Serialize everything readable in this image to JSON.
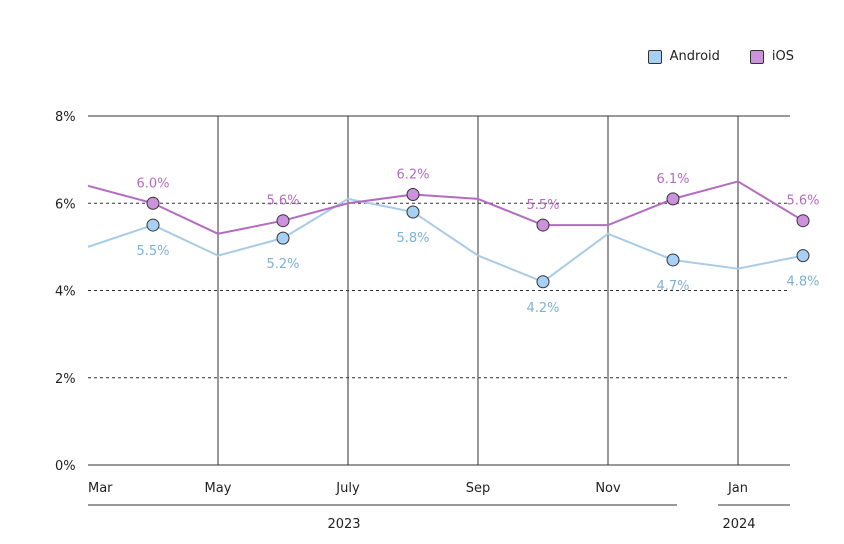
{
  "chart_data": {
    "type": "line",
    "x": [
      "2023-03",
      "2023-04",
      "2023-05",
      "2023-06",
      "2023-07",
      "2023-08",
      "2023-09",
      "2023-10",
      "2023-11",
      "2023-12",
      "2024-01",
      "2024-02"
    ],
    "x_tick_labels": [
      "Mar",
      "May",
      "July",
      "Sep",
      "Nov",
      "Jan"
    ],
    "year_labels": [
      "2023",
      "2024"
    ],
    "series": [
      {
        "name": "Android",
        "color": "#a9cbe6",
        "marker_color": "#a8d0f5",
        "values": [
          5.0,
          5.5,
          4.8,
          5.2,
          6.1,
          5.8,
          4.8,
          4.2,
          5.3,
          4.7,
          4.5,
          4.8
        ],
        "data_labels": [
          "",
          "5.5%",
          "",
          "5.2%",
          "",
          "5.8%",
          "",
          "4.2%",
          "",
          "4.7%",
          "",
          "4.8%"
        ]
      },
      {
        "name": "iOS",
        "color": "#b36cc0",
        "marker_color": "#cc92dd",
        "values": [
          6.4,
          6.0,
          5.3,
          5.6,
          6.0,
          6.2,
          6.1,
          5.5,
          5.5,
          6.1,
          6.5,
          5.6
        ],
        "data_labels": [
          "",
          "6.0%",
          "",
          "5.6%",
          "",
          "6.2%",
          "",
          "5.5%",
          "",
          "6.1%",
          "",
          "5.6%"
        ]
      }
    ],
    "y_ticks": [
      "0%",
      "2%",
      "4%",
      "6%",
      "8%"
    ],
    "ylim": [
      0,
      8
    ],
    "legend_position": "top-right",
    "label_colors": {
      "Android": "#7fb0d8",
      "iOS": "#b36cc0"
    }
  }
}
